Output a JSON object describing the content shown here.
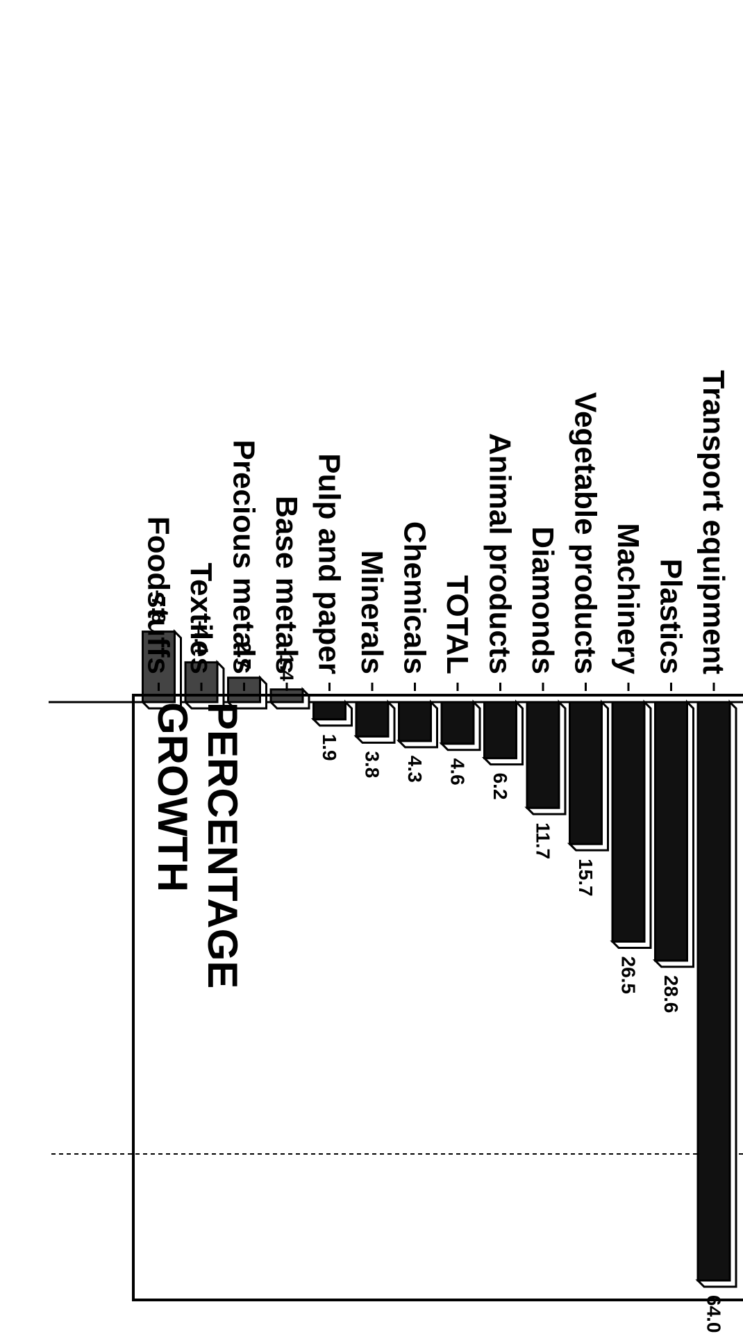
{
  "chart_data": {
    "type": "bar",
    "orientation": "horizontal",
    "title_lines": [
      "PERCENTAGE",
      "GROWTH"
    ],
    "categories": [
      "Transport equipment",
      "Plastics",
      "Machinery",
      "Vegetable products",
      "Diamonds",
      "Animal products",
      "TOTAL",
      "Chemicals",
      "Minerals",
      "Pulp and paper",
      "Base metals",
      "Precious metals",
      "Textiles",
      "Foodstuffs"
    ],
    "values": [
      64.0,
      28.6,
      26.5,
      15.7,
      11.7,
      6.2,
      4.6,
      4.3,
      3.8,
      1.9,
      -1.4,
      -2.7,
      -4.4,
      -7.8
    ],
    "value_labels": [
      "64.0",
      "28.6",
      "26.5",
      "15.7",
      "11.7",
      "6.2",
      "4.6",
      "4.3",
      "3.8",
      "1.9",
      "-1.4",
      "-2.7",
      "-4.4",
      "-7.8"
    ],
    "reference_line": 50,
    "xlim": [
      -10,
      65
    ],
    "colors": {
      "bar_fill": "#111111",
      "bar_fill_negative": "#444444",
      "bar_edge": "#000000",
      "bar_side": "#ffffff",
      "axis": "#000000"
    }
  }
}
